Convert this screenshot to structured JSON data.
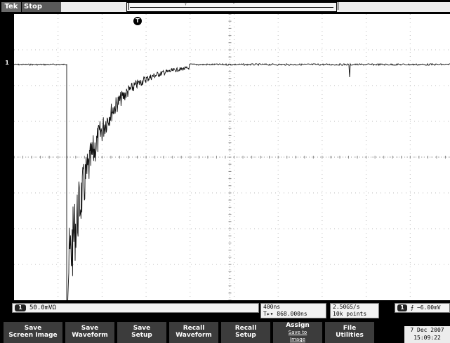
{
  "topbar": {
    "logo": "Tek",
    "run_state": "Stop"
  },
  "markers": {
    "ch1_ref": "1",
    "trigger_pos": "T"
  },
  "readouts": {
    "ch1_badge": "1",
    "ch1_scale": "50.0mVΩ",
    "timebase": "400ns",
    "trigger_delay": "T▸▾ 868.000ns",
    "sample_rate": "2.50GS/s",
    "record_length": "10k points",
    "trigger_badge": "1",
    "trigger_level": "⨍ −6.00mV"
  },
  "softkeys": [
    {
      "line1": "Save",
      "line2": "Screen Image"
    },
    {
      "line1": "Save",
      "line2": "Waveform"
    },
    {
      "line1": "Save",
      "line2": "Setup"
    },
    {
      "line1": "Recall",
      "line2": "Waveform"
    },
    {
      "line1": "Recall",
      "line2": "Setup"
    },
    {
      "line1": "Assign",
      "line2": "Save to",
      "line3": "Image"
    },
    {
      "line1": "File",
      "line2": "Utilities"
    }
  ],
  "datetime": {
    "date": "7 Dec 2007",
    "time": "15:09:22"
  },
  "colors": {
    "background": "#000000",
    "graticule": "#ffffff",
    "trace": "#000000",
    "softkey": "#3c3c3c"
  }
}
